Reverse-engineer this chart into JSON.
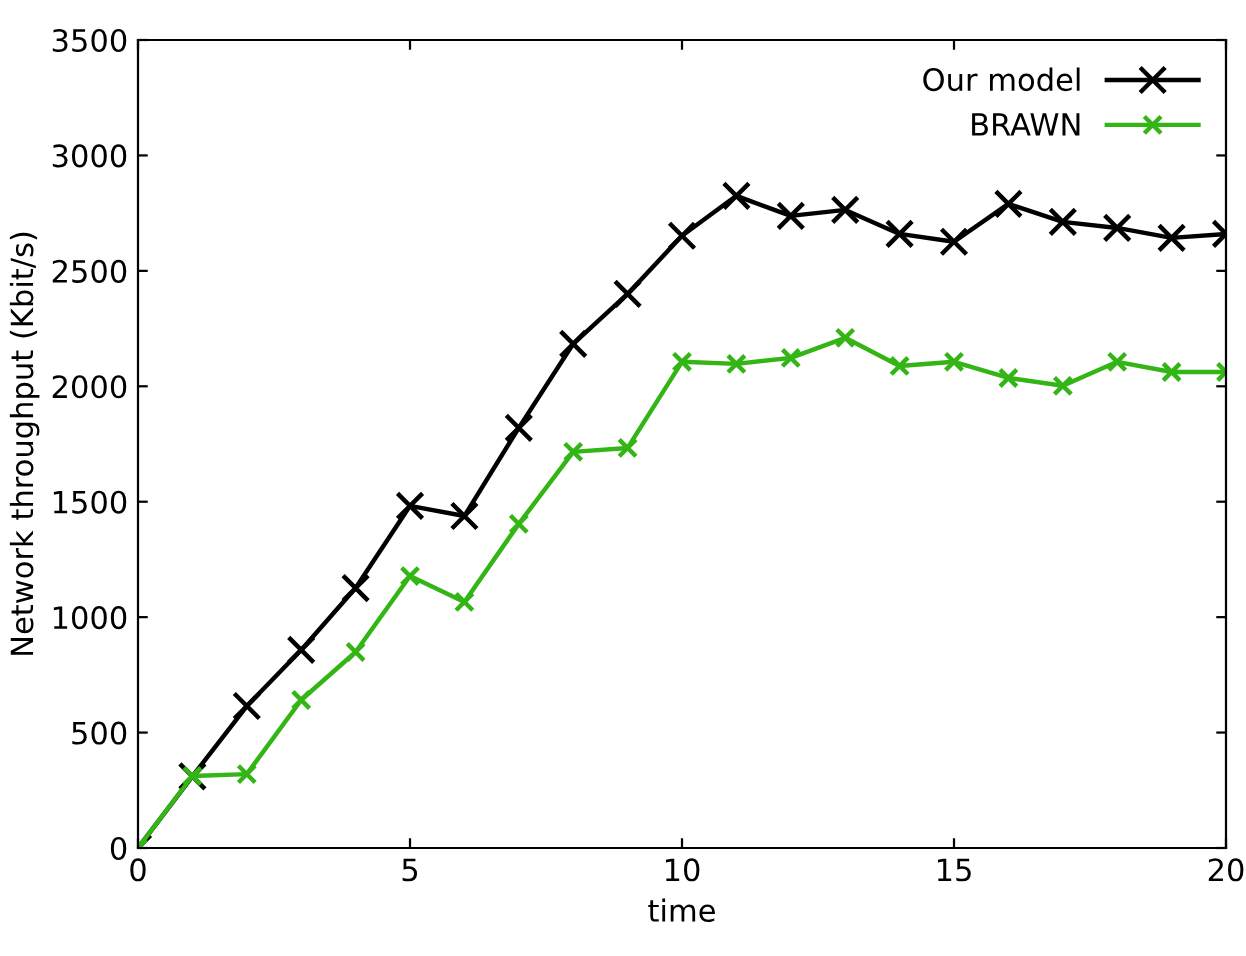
{
  "chart_data": {
    "type": "line",
    "xlabel": "time",
    "ylabel": "Network throughput (Kbit/s)",
    "x": [
      0,
      1,
      2,
      3,
      4,
      5,
      6,
      7,
      8,
      9,
      10,
      11,
      12,
      13,
      14,
      15,
      16,
      17,
      18,
      19,
      20
    ],
    "series": [
      {
        "name": "Our model",
        "color": "#000000",
        "values": [
          0,
          310,
          615,
          858,
          1126,
          1482,
          1438,
          1820,
          2184,
          2400,
          2652,
          2825,
          2738,
          2764,
          2660,
          2626,
          2790,
          2712,
          2686,
          2643,
          2660
        ]
      },
      {
        "name": "BRAWN",
        "color": "#33b516",
        "values": [
          0,
          312,
          320,
          641,
          849,
          1178,
          1066,
          1404,
          1716,
          1733,
          2106,
          2097,
          2123,
          2210,
          2088,
          2106,
          2036,
          2002,
          2106,
          2062,
          2062
        ]
      }
    ],
    "xlim": [
      0,
      20
    ],
    "xticks": [
      0,
      5,
      10,
      15,
      20
    ],
    "ylim": [
      0,
      3500
    ],
    "yticks": [
      0,
      500,
      1000,
      1500,
      2000,
      2500,
      3000,
      3500
    ],
    "grid": false,
    "legend": "top right",
    "marker": "cross",
    "line_style": "solid"
  }
}
